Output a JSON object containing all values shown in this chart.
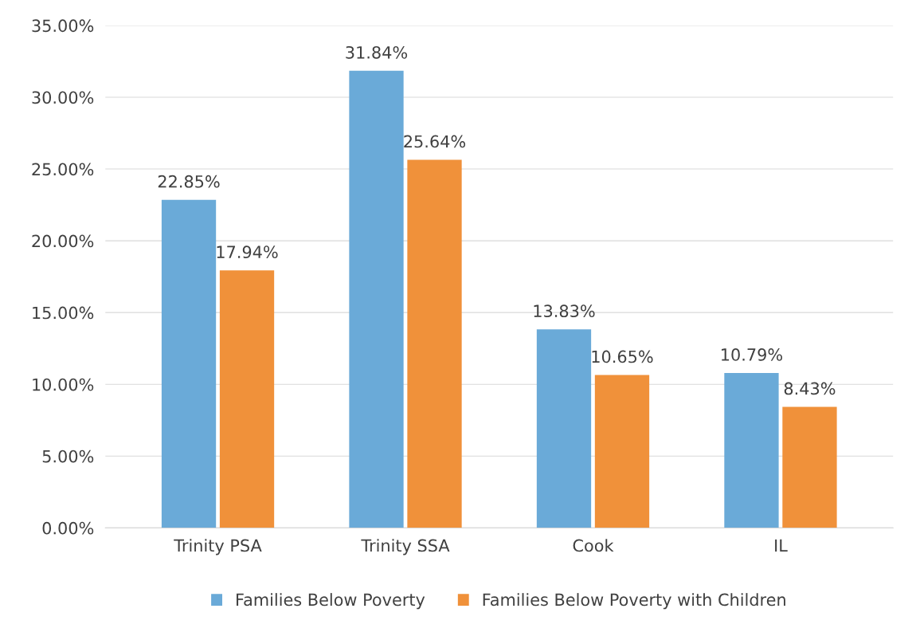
{
  "chart_data": {
    "type": "bar",
    "categories": [
      "Trinity PSA",
      "Trinity SSA",
      "Cook",
      "IL"
    ],
    "series": [
      {
        "name": "Families Below Poverty",
        "color": "#6aaad8",
        "values": [
          22.85,
          31.84,
          13.83,
          10.79
        ],
        "value_labels": [
          "22.85%",
          "31.84%",
          "13.83%",
          "10.79%"
        ]
      },
      {
        "name": "Families Below Poverty with Children",
        "color": "#f0913a",
        "values": [
          17.94,
          25.64,
          10.65,
          8.43
        ],
        "value_labels": [
          "17.94%",
          "25.64%",
          "10.65%",
          "8.43%"
        ]
      }
    ],
    "ylim": [
      0,
      35
    ],
    "yticks": [
      {
        "value": 0,
        "label": "0.00%"
      },
      {
        "value": 5,
        "label": "5.00%"
      },
      {
        "value": 10,
        "label": "10.00%"
      },
      {
        "value": 15,
        "label": "15.00%"
      },
      {
        "value": 20,
        "label": "20.00%"
      },
      {
        "value": 25,
        "label": "25.00%"
      },
      {
        "value": 30,
        "label": "30.00%"
      },
      {
        "value": 35,
        "label": "35.00%"
      }
    ],
    "grid": "y",
    "legend": "bottom"
  }
}
